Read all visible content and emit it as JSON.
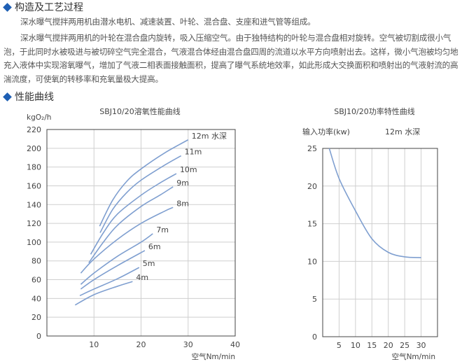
{
  "section1": {
    "title": "构造及工艺过程",
    "para1": "深水曝气搅拌两用机由潜水电机、减速装置、叶轮、混合盘、支座和进气管等组成。",
    "para2": "深水曝气搅拌两用机的叶轮在混合盘内旋转，吸入压缩空气。由于独特结构的叶轮与混合盘相对旋转。空气被切割成很小气泡，于此同时水被吸进与被切碎空气完全混合，气液混合体经由混合盘四周的流道以水平方向喷射出去。这样，微小气泡被均匀地充入液体中实现溶氧曝气，增加了气液二相表面接触面积，提高了曝气系统地效率，如此形成大交换面积和喷射出的气液射流的高湍流度，可使氧的转移率和充氧量极大提高。"
  },
  "section2": {
    "title": "性能曲线"
  },
  "colors": {
    "accent": "#1e5fb4",
    "curve": "#7f9fd0",
    "grid": "#cfcfcf"
  },
  "chart_data": [
    {
      "type": "line",
      "title": "SBJ10/20溶氧性能曲线",
      "ylabel": "kgO₂/h",
      "xlabel": "空气Nm/min",
      "xlim": [
        0,
        40
      ],
      "ylim": [
        0,
        220
      ],
      "xticks": [
        10,
        20,
        30,
        40
      ],
      "yticks": [
        0,
        20,
        40,
        60,
        80,
        100,
        120,
        140,
        160,
        180,
        200,
        220
      ],
      "grid": true,
      "series": [
        {
          "name": "12m 水深",
          "points": [
            [
              11.2,
              117
            ],
            [
              14,
              145
            ],
            [
              17,
              165
            ],
            [
              20,
              178
            ],
            [
              25,
              195
            ],
            [
              30,
              209
            ]
          ]
        },
        {
          "name": "11m",
          "points": [
            [
              11.3,
              110
            ],
            [
              14,
              135
            ],
            [
              17,
              153
            ],
            [
              20,
              166
            ],
            [
              25,
              182
            ],
            [
              28.5,
              192
            ]
          ]
        },
        {
          "name": "10m",
          "points": [
            [
              9.3,
              87
            ],
            [
              12,
              110
            ],
            [
              15,
              130
            ],
            [
              20,
              150
            ],
            [
              24,
              163
            ],
            [
              27.5,
              173
            ]
          ]
        },
        {
          "name": "9m",
          "points": [
            [
              8.9,
              78
            ],
            [
              12,
              100
            ],
            [
              15,
              118
            ],
            [
              20,
              138
            ],
            [
              24,
              150
            ],
            [
              26.8,
              159
            ]
          ]
        },
        {
          "name": "8m",
          "points": [
            [
              7.2,
              67
            ],
            [
              10,
              82
            ],
            [
              15,
              103
            ],
            [
              20,
              120
            ],
            [
              25,
              133
            ],
            [
              26.8,
              137
            ]
          ]
        },
        {
          "name": "7m",
          "points": [
            [
              7.2,
              55
            ],
            [
              10,
              67
            ],
            [
              15,
              85
            ],
            [
              20,
              100
            ],
            [
              22.5,
              109
            ]
          ]
        },
        {
          "name": "6m",
          "points": [
            [
              7.2,
              50
            ],
            [
              10,
              60
            ],
            [
              15,
              75
            ],
            [
              20.8,
              91
            ]
          ]
        },
        {
          "name": "5m",
          "points": [
            [
              7,
              43
            ],
            [
              10,
              50
            ],
            [
              15,
              61
            ],
            [
              19.6,
              73
            ]
          ]
        },
        {
          "name": "4m",
          "points": [
            [
              6,
              33
            ],
            [
              10,
              44
            ],
            [
              15,
              53
            ],
            [
              18.2,
              58
            ]
          ]
        }
      ]
    },
    {
      "type": "line",
      "title": "SBJ10/20功率特性曲线",
      "ylabel": "输入功率(kw)",
      "annotation": "12m 水深",
      "xlabel": "空气Nm/min",
      "xlim": [
        0,
        35
      ],
      "ylim": [
        0,
        25
      ],
      "xticks": [
        5,
        10,
        15,
        20,
        25,
        30
      ],
      "yticks": [
        0,
        5,
        10,
        15,
        20,
        25
      ],
      "grid": true,
      "series": [
        {
          "points": [
            [
              2,
              25
            ],
            [
              5,
              21
            ],
            [
              10,
              16.7
            ],
            [
              15,
              13
            ],
            [
              20,
              11.2
            ],
            [
              25,
              10.6
            ],
            [
              30,
              10.5
            ]
          ]
        }
      ]
    }
  ]
}
